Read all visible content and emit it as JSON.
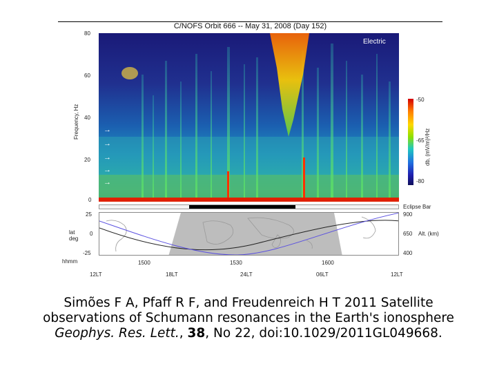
{
  "figure": {
    "title": "C/NOFS Orbit 666 -- May 31, 2008 (Day 152)",
    "panel_label": "Electric",
    "y_axis_label": "Frequency, Hz",
    "y_ticks": [
      "80",
      "60",
      "40",
      "20",
      "0"
    ],
    "colorbar_label": "db, (mV/m)²/Hz",
    "colorbar_ticks": [
      "-50",
      "-65",
      "-80"
    ],
    "arrow_glyph": "→",
    "eclipse_label": "Eclipse Bar",
    "orbit_left_label_1": "lat",
    "orbit_left_label_2": "deg",
    "orbit_left_ticks": [
      "25",
      "0",
      "-25"
    ],
    "orbit_right_ticks": [
      "900",
      "650",
      "400"
    ],
    "orbit_right_label": "Alt. (km)",
    "time_label": "hhmm",
    "time_ticks": [
      "1500",
      "1530",
      "1600"
    ],
    "lt_ticks": [
      "12LT",
      "18LT",
      "24LT",
      "06LT",
      "12LT"
    ]
  },
  "chart_data": {
    "type": "heatmap",
    "title": "C/NOFS Orbit 666 -- May 31, 2008 (Day 152)",
    "ylabel": "Frequency, Hz",
    "ylim": [
      0,
      80
    ],
    "y_ticks": [
      0,
      20,
      40,
      60,
      80
    ],
    "colorbar_range": [
      -80,
      -50
    ],
    "colorbar_ticks": [
      -80,
      -65,
      -50
    ],
    "schumann_arrow_freqs": [
      8,
      14,
      20,
      27,
      33
    ],
    "time_ticks": [
      "1500",
      "1530",
      "1600"
    ],
    "eclipse_fraction_start": 0.3,
    "eclipse_fraction_end": 0.655,
    "latitude_range": [
      -25,
      25
    ],
    "altitude_range_km": [
      400,
      900
    ]
  },
  "caption": {
    "line1": "Simões F A, Pfaff R F, and Freudenreich H T 2011 Satellite",
    "line2": "observations of Schumann resonances in the Earth's ionosphere",
    "journal": "Geophys. Res. Lett.",
    "sep1": ", ",
    "volume": "38",
    "rest": ", No 22, doi:10.1029/2011GL049668."
  },
  "colors": {
    "spectrogram_low": "#1a1a78",
    "spectrogram_high": "#d40000",
    "latitude_line": "#222222",
    "altitude_line": "#5a50e0",
    "night_shade": "#bdbdbd"
  }
}
